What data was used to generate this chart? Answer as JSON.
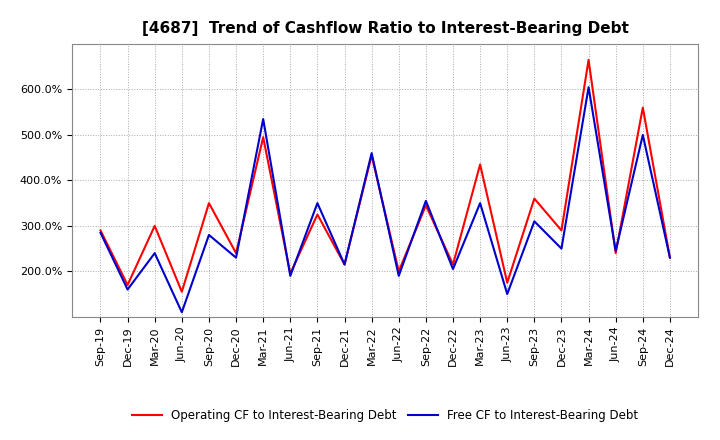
{
  "title": "[4687]  Trend of Cashflow Ratio to Interest-Bearing Debt",
  "x_labels": [
    "Sep-19",
    "Dec-19",
    "Mar-20",
    "Jun-20",
    "Sep-20",
    "Dec-20",
    "Mar-21",
    "Jun-21",
    "Sep-21",
    "Dec-21",
    "Mar-22",
    "Jun-22",
    "Sep-22",
    "Dec-22",
    "Mar-23",
    "Jun-23",
    "Sep-23",
    "Dec-23",
    "Mar-24",
    "Jun-24",
    "Sep-24",
    "Dec-24"
  ],
  "operating_cf": [
    2.9,
    1.7,
    3.0,
    1.55,
    3.5,
    2.4,
    4.95,
    1.95,
    3.25,
    2.15,
    4.55,
    2.0,
    3.45,
    2.15,
    4.35,
    1.75,
    3.6,
    2.9,
    6.65,
    2.4,
    5.6,
    2.3
  ],
  "free_cf": [
    2.85,
    1.6,
    2.4,
    1.1,
    2.8,
    2.3,
    5.35,
    1.9,
    3.5,
    2.15,
    4.6,
    1.9,
    3.55,
    2.05,
    3.5,
    1.5,
    3.1,
    2.5,
    6.05,
    2.45,
    5.0,
    2.3
  ],
  "operating_color": "#ff0000",
  "free_color": "#0000cc",
  "background_color": "#ffffff",
  "plot_bg_color": "#ffffff",
  "grid_color": "#aaaaaa",
  "ylim": [
    1.0,
    7.0
  ],
  "yticks": [
    2.0,
    3.0,
    4.0,
    5.0,
    6.0
  ],
  "legend_labels": [
    "Operating CF to Interest-Bearing Debt",
    "Free CF to Interest-Bearing Debt"
  ],
  "title_fontsize": 11,
  "tick_fontsize": 8,
  "legend_fontsize": 8.5
}
